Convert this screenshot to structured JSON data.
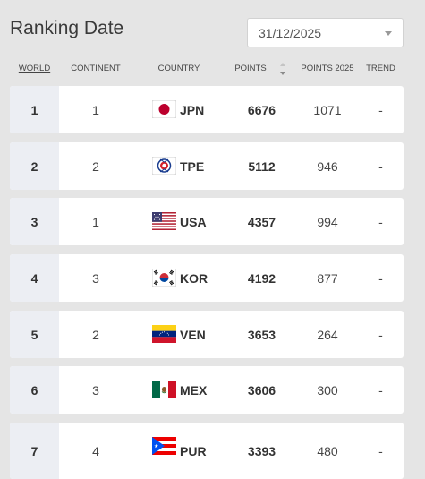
{
  "header": {
    "title": "Ranking Date",
    "date_select_value": "31/12/2025"
  },
  "columns": {
    "world": "WORLD",
    "continent": "CONTINENT",
    "country": "COUNTRY",
    "points": "POINTS",
    "points_2025": "POINTS 2025",
    "trend": "TREND"
  },
  "rows": [
    {
      "world": "1",
      "continent": "1",
      "country": "JPN",
      "flag": "japan-flag-icon",
      "points": "6676",
      "points_2025": "1071",
      "trend": "-"
    },
    {
      "world": "2",
      "continent": "2",
      "country": "TPE",
      "flag": "chinese-taipei-flag-icon",
      "points": "5112",
      "points_2025": "946",
      "trend": "-"
    },
    {
      "world": "3",
      "continent": "1",
      "country": "USA",
      "flag": "usa-flag-icon",
      "points": "4357",
      "points_2025": "994",
      "trend": "-"
    },
    {
      "world": "4",
      "continent": "3",
      "country": "KOR",
      "flag": "south-korea-flag-icon",
      "points": "4192",
      "points_2025": "877",
      "trend": "-"
    },
    {
      "world": "5",
      "continent": "2",
      "country": "VEN",
      "flag": "venezuela-flag-icon",
      "points": "3653",
      "points_2025": "264",
      "trend": "-"
    },
    {
      "world": "6",
      "continent": "3",
      "country": "MEX",
      "flag": "mexico-flag-icon",
      "points": "3606",
      "points_2025": "300",
      "trend": "-"
    },
    {
      "world": "7",
      "continent": "4",
      "country": "PUR",
      "flag": "puerto-rico-flag-icon",
      "points": "3393",
      "points_2025": "480",
      "trend": "-"
    }
  ],
  "colors": {
    "page_background": "#e5e5e5",
    "row_background": "#ffffff",
    "rank_cell_background": "#eceef3"
  }
}
